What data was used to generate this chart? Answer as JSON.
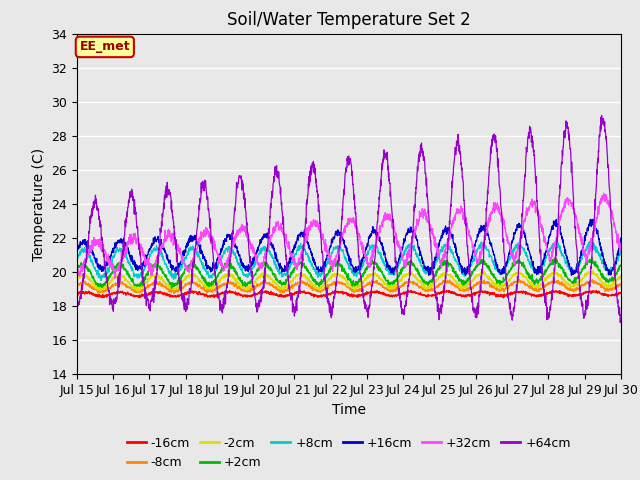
{
  "title": "Soil/Water Temperature Set 2",
  "xlabel": "Time",
  "ylabel": "Temperature (C)",
  "ylim": [
    14,
    34
  ],
  "xlim": [
    0,
    15
  ],
  "yticks": [
    14,
    16,
    18,
    20,
    22,
    24,
    26,
    28,
    30,
    32,
    34
  ],
  "xtick_labels": [
    "Jul 15",
    "Jul 16",
    "Jul 17",
    "Jul 18",
    "Jul 19",
    "Jul 20",
    "Jul 21",
    "Jul 22",
    "Jul 23",
    "Jul 24",
    "Jul 25",
    "Jul 26",
    "Jul 27",
    "Jul 28",
    "Jul 29",
    "Jul 30"
  ],
  "annotation_text": "EE_met",
  "annotation_bg": "#ffff99",
  "annotation_border": "#cc0000",
  "series": [
    {
      "label": "-16cm",
      "color": "#ff0000"
    },
    {
      "label": "-8cm",
      "color": "#ff8800"
    },
    {
      "label": "-2cm",
      "color": "#dddd00"
    },
    {
      "label": "+2cm",
      "color": "#00bb00"
    },
    {
      "label": "+8cm",
      "color": "#00cccc"
    },
    {
      "label": "+16cm",
      "color": "#0000cc"
    },
    {
      "label": "+32cm",
      "color": "#ff44ff"
    },
    {
      "label": "+64cm",
      "color": "#9900cc"
    }
  ],
  "bg_color": "#e8e8e8",
  "fig_bg": "#e8e8e8",
  "title_fontsize": 12,
  "label_fontsize": 10,
  "tick_fontsize": 9
}
